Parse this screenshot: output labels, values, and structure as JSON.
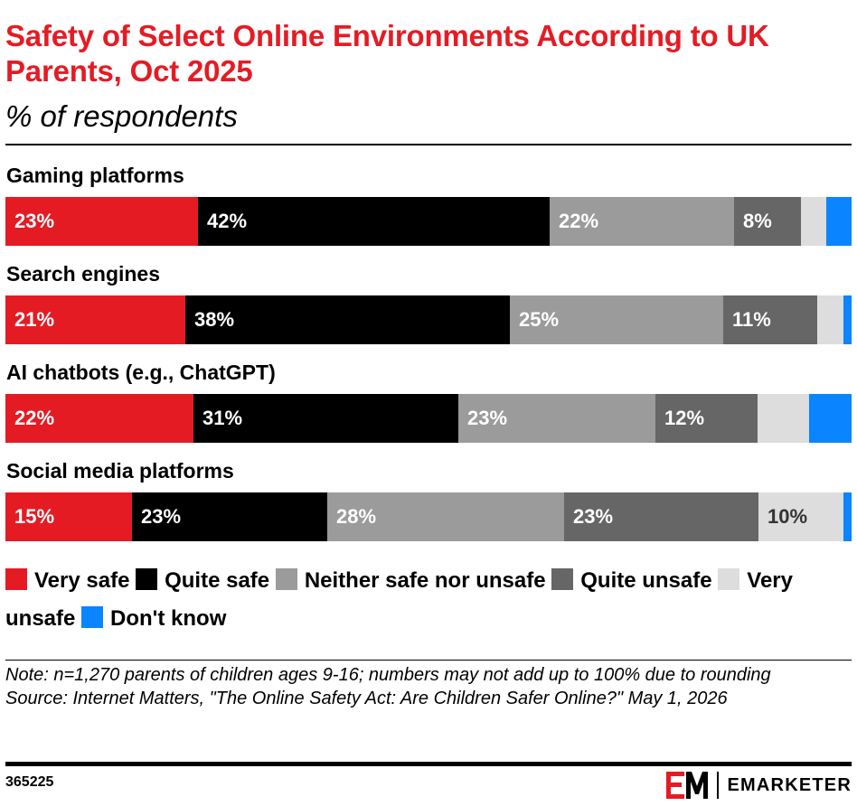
{
  "title": "Safety of Select Online Environments According to UK Parents, Oct 2025",
  "subtitle": "% of respondents",
  "chart_data": {
    "type": "bar",
    "orientation": "horizontal",
    "stacked": true,
    "categories": [
      "Gaming platforms",
      "Search engines",
      "AI chatbots (e.g., ChatGPT)",
      "Social media platforms"
    ],
    "series": [
      {
        "name": "Very safe",
        "color": "#e51b24",
        "text_color": "#ffffff",
        "values": [
          23,
          21,
          22,
          15
        ],
        "labels": [
          "23%",
          "21%",
          "22%",
          "15%"
        ]
      },
      {
        "name": "Quite safe",
        "color": "#000000",
        "text_color": "#ffffff",
        "values": [
          42,
          38,
          31,
          23
        ],
        "labels": [
          "42%",
          "38%",
          "31%",
          "23%"
        ]
      },
      {
        "name": "Neither safe nor unsafe",
        "color": "#9b9b9b",
        "text_color": "#ffffff",
        "values": [
          22,
          25,
          23,
          28
        ],
        "labels": [
          "22%",
          "25%",
          "23%",
          "28%"
        ]
      },
      {
        "name": "Quite unsafe",
        "color": "#666666",
        "text_color": "#ffffff",
        "values": [
          8,
          11,
          12,
          23
        ],
        "labels": [
          "8%",
          "11%",
          "12%",
          "23%"
        ]
      },
      {
        "name": "Very unsafe",
        "color": "#dddddd",
        "text_color": "#333333",
        "values": [
          3,
          3,
          6,
          10
        ],
        "labels": [
          "",
          "",
          "",
          "10%"
        ]
      },
      {
        "name": "Don't know",
        "color": "#0a84ff",
        "text_color": "#ffffff",
        "values": [
          3,
          1,
          5,
          1
        ],
        "labels": [
          "",
          "",
          "",
          ""
        ]
      }
    ],
    "xlim": [
      0,
      100
    ],
    "grid": false,
    "legend": "bottom"
  },
  "note": "Note: n=1,270 parents of children ages 9-16; numbers may not add up to 100% due to rounding",
  "source": "Source: Internet Matters, \"The Online Safety Act: Are Children Safer Online?\" May 1, 2026",
  "chart_id": "365225",
  "brand": "EMARKETER"
}
